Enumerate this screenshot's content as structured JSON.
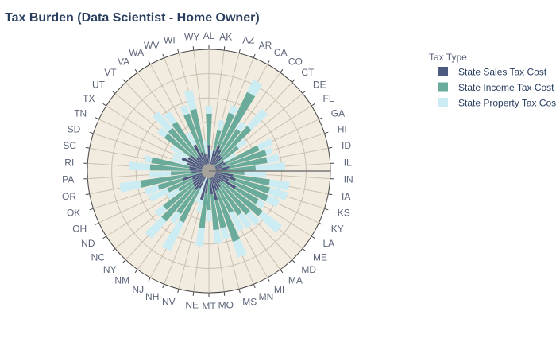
{
  "chart_data": {
    "type": "bar",
    "subtype": "polar-stacked",
    "title": "Tax Burden (Data Scientist - Home Owner)",
    "legend_title": "Tax Type",
    "legend_position": "right",
    "grid": true,
    "categories": [
      "AL",
      "AK",
      "AZ",
      "AR",
      "CA",
      "CO",
      "CT",
      "DE",
      "FL",
      "GA",
      "HI",
      "ID",
      "IL",
      "IN",
      "IA",
      "KS",
      "KY",
      "LA",
      "ME",
      "MD",
      "MA",
      "MI",
      "MN",
      "MS",
      "MO",
      "MT",
      "NE",
      "NV",
      "NH",
      "NJ",
      "NM",
      "NY",
      "NC",
      "ND",
      "OH",
      "OK",
      "OR",
      "PA",
      "RI",
      "SC",
      "SD",
      "TN",
      "TX",
      "UT",
      "VT",
      "VA",
      "WA",
      "WV",
      "WI",
      "WY"
    ],
    "series": [
      {
        "name": "State Sales Tax Cost",
        "color": "#4c5a80",
        "values": [
          3.0,
          0,
          2.4,
          3.2,
          2.7,
          2.2,
          2.2,
          0,
          2.0,
          2.1,
          1.6,
          2.4,
          2.1,
          1.5,
          2.8,
          3.2,
          2.5,
          3.6,
          2.0,
          1.8,
          2.2,
          2.3,
          2.4,
          3.4,
          2.7,
          0,
          2.5,
          3.4,
          0,
          2.2,
          2.6,
          2.4,
          2.3,
          2.2,
          2.1,
          3.1,
          0,
          2.0,
          2.2,
          2.3,
          2.6,
          3.4,
          2.8,
          2.7,
          2.0,
          2.1,
          3.4,
          2.3,
          2.1,
          2.0
        ]
      },
      {
        "name": "State Income Tax Cost",
        "color": "#6aab9c",
        "values": [
          3.6,
          0,
          2.4,
          3.9,
          7.4,
          3.6,
          4.6,
          4.3,
          0,
          4.2,
          5.3,
          4.4,
          3.3,
          2.6,
          4.3,
          4.1,
          4.9,
          3.0,
          5.7,
          4.8,
          3.9,
          3.1,
          6.2,
          3.3,
          4.1,
          4.5,
          4.1,
          0,
          0,
          4.4,
          3.3,
          5.2,
          4.3,
          1.9,
          3.1,
          3.0,
          8.0,
          2.4,
          4.6,
          4.4,
          0,
          0,
          0,
          3.7,
          4.5,
          4.7,
          0,
          4.7,
          5.2,
          0
        ]
      },
      {
        "name": "State Property Tax Cost",
        "color": "#ccecf4",
        "values": [
          0.9,
          2.4,
          1.2,
          0.9,
          1.6,
          1.0,
          2.6,
          1.2,
          1.6,
          1.7,
          0.7,
          1.4,
          3.4,
          2.5,
          2.3,
          2.1,
          1.4,
          0.9,
          2.8,
          1.6,
          1.8,
          2.3,
          1.9,
          1.3,
          1.6,
          1.3,
          2.1,
          1.4,
          3.8,
          3.6,
          1.3,
          2.6,
          1.2,
          1.5,
          2.3,
          1.6,
          2.4,
          2.5,
          2.4,
          0.8,
          1.9,
          1.1,
          2.3,
          1.0,
          2.5,
          1.4,
          1.6,
          1.0,
          2.2,
          1.5
        ]
      }
    ],
    "radial_range": [
      0,
      14
    ]
  }
}
